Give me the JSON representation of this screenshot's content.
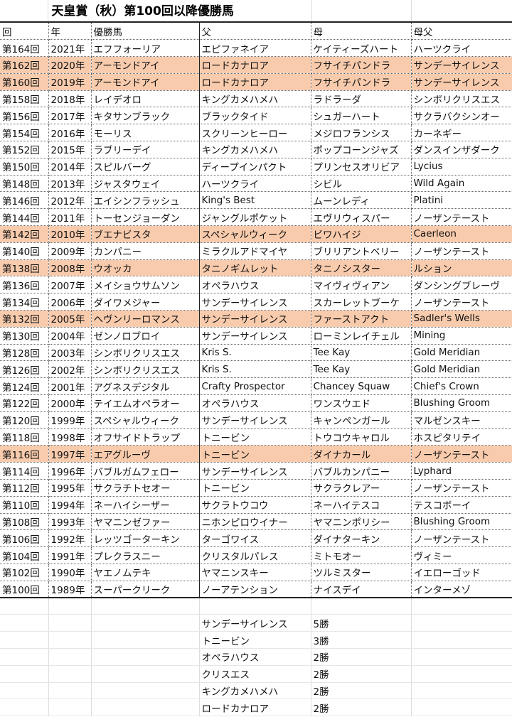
{
  "title": "天皇賞（秋）第100回以降優勝馬",
  "highlight_color": "#F8CBAD",
  "headers": [
    "回",
    "年",
    "優勝馬",
    "父",
    "母",
    "母父"
  ],
  "rows": [
    {
      "cells": [
        "第164回",
        "2021年",
        "エフフォーリア",
        "エピファネイア",
        "ケイティーズハート",
        "ハーツクライ"
      ],
      "highlight": false
    },
    {
      "cells": [
        "第162回",
        "2020年",
        "アーモンドアイ",
        "ロードカナロア",
        "フサイチパンドラ",
        "サンデーサイレンス"
      ],
      "highlight": true
    },
    {
      "cells": [
        "第160回",
        "2019年",
        "アーモンドアイ",
        "ロードカナロア",
        "フサイチパンドラ",
        "サンデーサイレンス"
      ],
      "highlight": true
    },
    {
      "cells": [
        "第158回",
        "2018年",
        "レイデオロ",
        "キングカメハメハ",
        "ラドラーダ",
        "シンボリクリスエス"
      ],
      "highlight": false
    },
    {
      "cells": [
        "第156回",
        "2017年",
        "キタサンブラック",
        "ブラックタイド",
        "シュガーハート",
        "サクラバクシンオー"
      ],
      "highlight": false
    },
    {
      "cells": [
        "第154回",
        "2016年",
        "モーリス",
        "スクリーンヒーロー",
        "メジロフランシス",
        "カーネギー"
      ],
      "highlight": false
    },
    {
      "cells": [
        "第152回",
        "2015年",
        "ラブリーデイ",
        "キングカメハメハ",
        "ポップコーンジャズ",
        "ダンスインザダーク"
      ],
      "highlight": false
    },
    {
      "cells": [
        "第150回",
        "2014年",
        "スピルバーグ",
        "ディープインパクト",
        "プリンセスオリビア",
        "Lycius"
      ],
      "highlight": false
    },
    {
      "cells": [
        "第148回",
        "2013年",
        "ジャスタウェイ",
        "ハーツクライ",
        "シビル",
        "Wild Again"
      ],
      "highlight": false
    },
    {
      "cells": [
        "第146回",
        "2012年",
        "エイシンフラッシュ",
        "King's Best",
        "ムーンレディ",
        "Platini"
      ],
      "highlight": false
    },
    {
      "cells": [
        "第144回",
        "2011年",
        "トーセンジョーダン",
        "ジャングルポケット",
        "エヴリウィスパー",
        "ノーザンテースト"
      ],
      "highlight": false
    },
    {
      "cells": [
        "第142回",
        "2010年",
        "ブエナビスタ",
        "スペシャルウィーク",
        "ビワハイジ",
        "Caerleon"
      ],
      "highlight": true
    },
    {
      "cells": [
        "第140回",
        "2009年",
        "カンパニー",
        "ミラクルアドマイヤ",
        "ブリリアントベリー",
        "ノーザンテースト"
      ],
      "highlight": false
    },
    {
      "cells": [
        "第138回",
        "2008年",
        "ウオッカ",
        "タニノギムレット",
        "タニノシスター",
        "ルション"
      ],
      "highlight": true
    },
    {
      "cells": [
        "第136回",
        "2007年",
        "メイショウサムソン",
        "オペラハウス",
        "マイヴィヴィアン",
        "ダンシングブレーヴ"
      ],
      "highlight": false
    },
    {
      "cells": [
        "第134回",
        "2006年",
        "ダイワメジャー",
        "サンデーサイレンス",
        "スカーレットブーケ",
        "ノーザンテースト"
      ],
      "highlight": false
    },
    {
      "cells": [
        "第132回",
        "2005年",
        "ヘヴンリーロマンス",
        "サンデーサイレンス",
        "ファーストアクト",
        "Sadler's Wells"
      ],
      "highlight": true
    },
    {
      "cells": [
        "第130回",
        "2004年",
        "ゼンノロブロイ",
        "サンデーサイレンス",
        "ローミンレイチェル",
        "Mining"
      ],
      "highlight": false
    },
    {
      "cells": [
        "第128回",
        "2003年",
        "シンボリクリスエス",
        "Kris S.",
        "Tee Kay",
        "Gold Meridian"
      ],
      "highlight": false
    },
    {
      "cells": [
        "第126回",
        "2002年",
        "シンボリクリスエス",
        "Kris S.",
        "Tee Kay",
        "Gold Meridian"
      ],
      "highlight": false
    },
    {
      "cells": [
        "第124回",
        "2001年",
        "アグネスデジタル",
        "Crafty Prospector",
        "Chancey Squaw",
        "Chief's Crown"
      ],
      "highlight": false
    },
    {
      "cells": [
        "第122回",
        "2000年",
        "テイエムオペラオー",
        "オペラハウス",
        "ワンスウエド",
        "Blushing Groom"
      ],
      "highlight": false
    },
    {
      "cells": [
        "第120回",
        "1999年",
        "スペシャルウィーク",
        "サンデーサイレンス",
        "キャンペンガール",
        "マルゼンスキー"
      ],
      "highlight": false
    },
    {
      "cells": [
        "第118回",
        "1998年",
        "オフサイドトラップ",
        "トニービン",
        "トウコウキャロル",
        "ホスピタリテイ"
      ],
      "highlight": false
    },
    {
      "cells": [
        "第116回",
        "1997年",
        "エアグルーヴ",
        "トニービン",
        "ダイナカール",
        "ノーザンテースト"
      ],
      "highlight": true
    },
    {
      "cells": [
        "第114回",
        "1996年",
        "バブルガムフェロー",
        "サンデーサイレンス",
        "バブルカンパニー",
        "Lyphard"
      ],
      "highlight": false
    },
    {
      "cells": [
        "第112回",
        "1995年",
        "サクラチトセオー",
        "トニービン",
        "サクラクレアー",
        "ノーザンテースト"
      ],
      "highlight": false
    },
    {
      "cells": [
        "第110回",
        "1994年",
        "ネーハイシーザー",
        "サクラトウコウ",
        "ネーハイテスコ",
        "テスコボーイ"
      ],
      "highlight": false
    },
    {
      "cells": [
        "第108回",
        "1993年",
        "ヤマニンゼファー",
        "ニホンピロウイナー",
        "ヤマニンポリシー",
        "Blushing Groom"
      ],
      "highlight": false
    },
    {
      "cells": [
        "第106回",
        "1992年",
        "レッツゴーターキン",
        "ターゴワイス",
        "ダイナターキン",
        "ノーザンテースト"
      ],
      "highlight": false
    },
    {
      "cells": [
        "第104回",
        "1991年",
        "プレクラスニー",
        "クリスタルパレス",
        "ミトモオー",
        "ヴィミー"
      ],
      "highlight": false
    },
    {
      "cells": [
        "第102回",
        "1990年",
        "ヤエノムテキ",
        "ヤマニンスキー",
        "ツルミスター",
        "イエローゴッド"
      ],
      "highlight": false
    },
    {
      "cells": [
        "第100回",
        "1989年",
        "スーパークリーク",
        "ノーアテンション",
        "ナイスデイ",
        "インターメゾ"
      ],
      "highlight": false
    }
  ],
  "summary": [
    {
      "sire": "サンデーサイレンス",
      "wins": "5勝"
    },
    {
      "sire": "トニービン",
      "wins": "3勝"
    },
    {
      "sire": "オペラハウス",
      "wins": "2勝"
    },
    {
      "sire": "クリスエス",
      "wins": "2勝"
    },
    {
      "sire": "キングカメハメハ",
      "wins": "2勝"
    },
    {
      "sire": "ロードカナロア",
      "wins": "2勝"
    }
  ]
}
